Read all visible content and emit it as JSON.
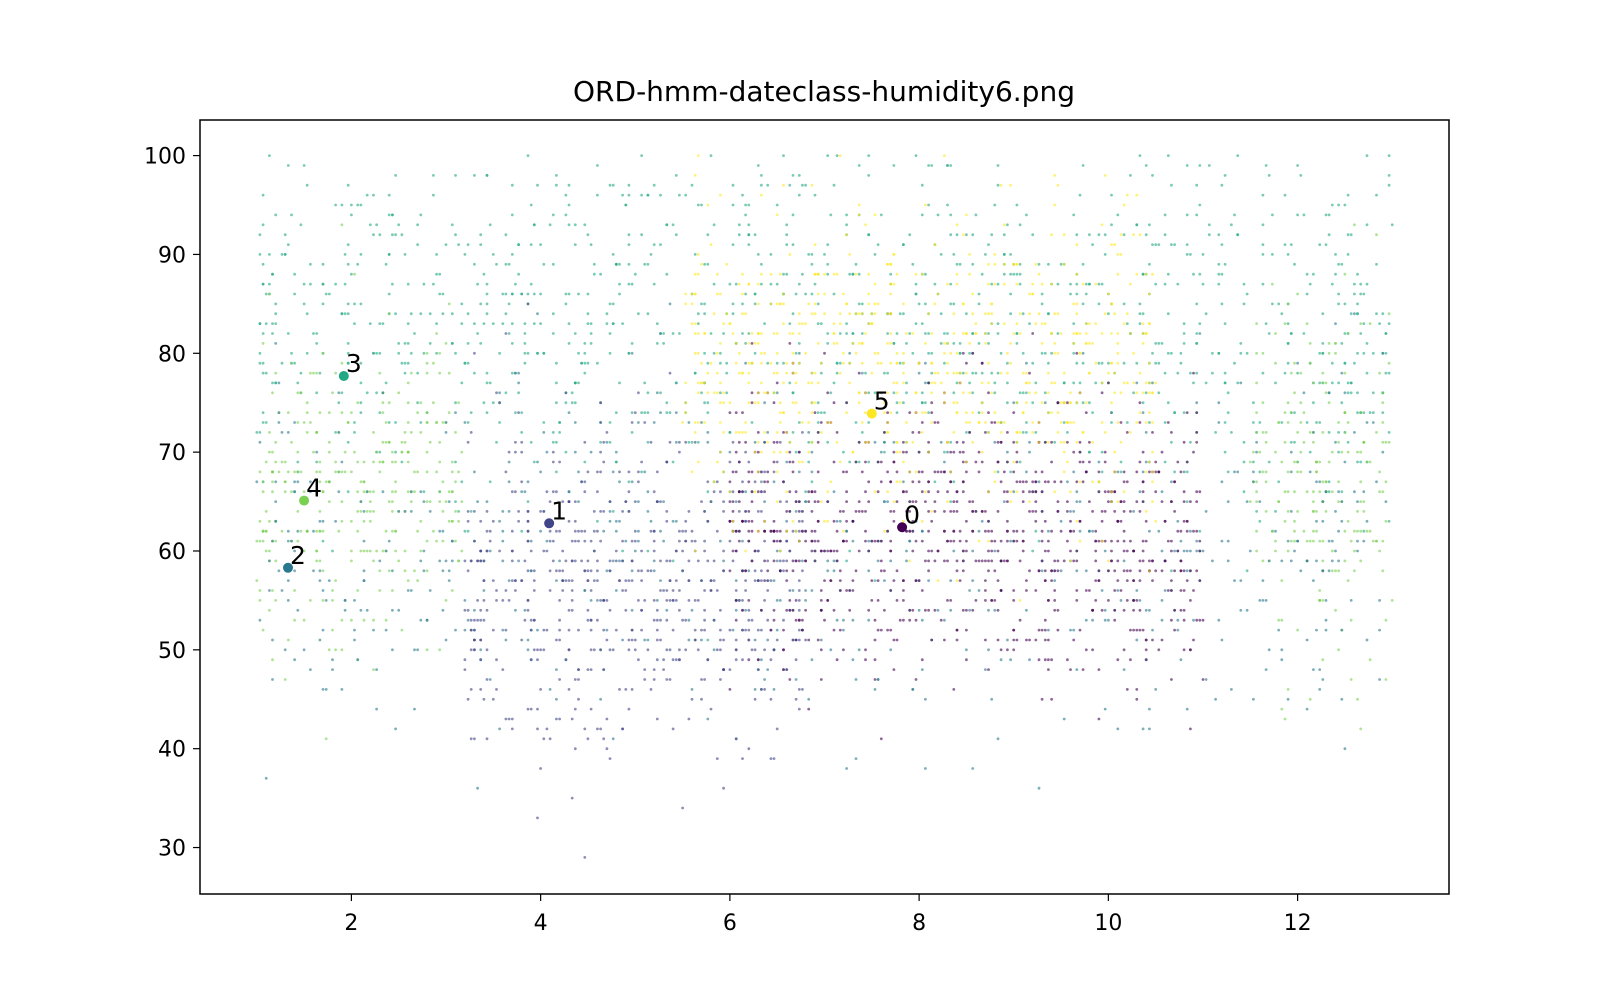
{
  "chart_data": {
    "type": "scatter",
    "title": "ORD-hmm-dateclass-humidity6.png",
    "xlabel": "",
    "ylabel": "",
    "xlim": [
      0.4,
      13.6
    ],
    "ylim": [
      25.3,
      103.6
    ],
    "xticks": [
      "2",
      "4",
      "6",
      "8",
      "10",
      "12"
    ],
    "yticks": [
      "30",
      "40",
      "50",
      "60",
      "70",
      "80",
      "90",
      "100"
    ],
    "grid": false,
    "legend": "none",
    "colormap": "viridis",
    "class_colors": {
      "0": "#440154",
      "1": "#414487",
      "2": "#2a788e",
      "3": "#22a884",
      "4": "#7ad151",
      "5": "#fde725"
    },
    "centers": [
      {
        "label": "0",
        "x": 7.82,
        "y": 62.4,
        "color": "#440154"
      },
      {
        "label": "1",
        "x": 4.09,
        "y": 62.8,
        "color": "#414487"
      },
      {
        "label": "2",
        "x": 1.33,
        "y": 58.3,
        "color": "#2a788e"
      },
      {
        "label": "3",
        "x": 1.92,
        "y": 77.7,
        "color": "#22a884"
      },
      {
        "label": "4",
        "x": 1.5,
        "y": 65.1,
        "color": "#7ad151"
      },
      {
        "label": "5",
        "x": 7.5,
        "y": 73.9,
        "color": "#fde725"
      }
    ],
    "point_clouds": [
      {
        "class": "3",
        "x_range": [
          1.0,
          13.0
        ],
        "y_center": 82,
        "y_spread": 9,
        "count": 1300
      },
      {
        "class": "4",
        "x_range": [
          1.0,
          3.2
        ],
        "y_center": 66,
        "y_spread": 8,
        "count": 320
      },
      {
        "class": "4",
        "x_range": [
          11.5,
          13.0
        ],
        "y_center": 66,
        "y_spread": 9,
        "count": 220
      },
      {
        "class": "2",
        "x_range": [
          1.0,
          13.0
        ],
        "y_center": 60,
        "y_spread": 9,
        "count": 700
      },
      {
        "class": "1",
        "x_range": [
          3.2,
          6.8
        ],
        "y_center": 56,
        "y_spread": 8,
        "count": 650
      },
      {
        "class": "0",
        "x_range": [
          6.0,
          11.0
        ],
        "y_center": 62,
        "y_spread": 7,
        "count": 900
      },
      {
        "class": "5",
        "x_range": [
          5.5,
          10.5
        ],
        "y_center": 78,
        "y_spread": 8,
        "count": 700
      }
    ]
  }
}
